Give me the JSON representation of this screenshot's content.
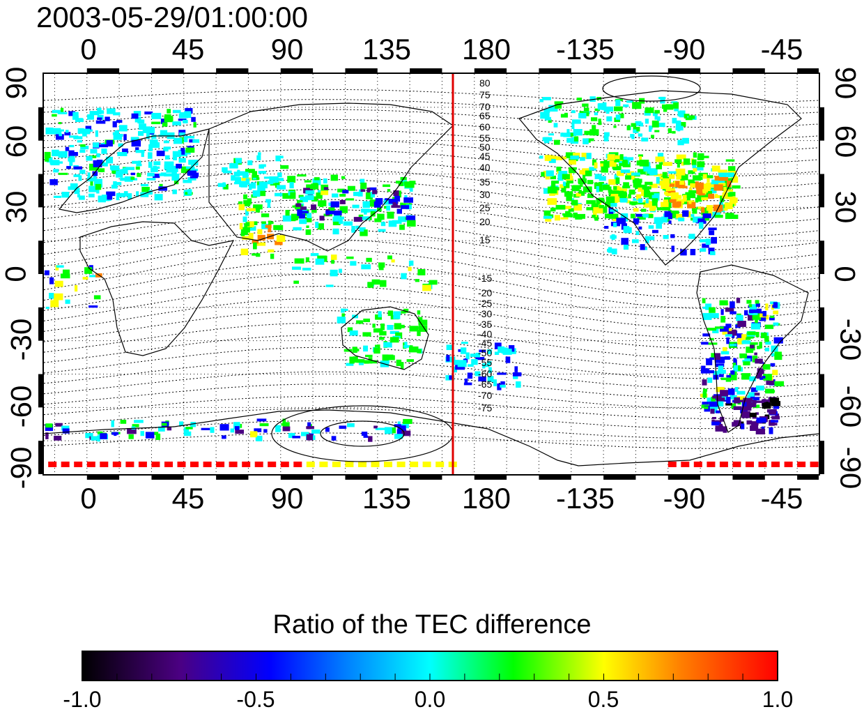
{
  "title": "2003-05-29/01:00:00",
  "longitude_ticks": [
    "0",
    "45",
    "90",
    "135",
    "180",
    "-135",
    "-90",
    "-45"
  ],
  "latitude_ticks": [
    "90",
    "60",
    "30",
    "0",
    "-30",
    "-60",
    "-90"
  ],
  "contour_labels_north": [
    "80",
    "75",
    "70",
    "65",
    "60",
    "55",
    "50",
    "45",
    "40",
    "35",
    "30",
    "25",
    "20",
    "15"
  ],
  "contour_labels_south": [
    "-15",
    "-20",
    "-25",
    "-30",
    "-35",
    "-40",
    "-45",
    "-50",
    "-55",
    "-60",
    "-65",
    "-70",
    "-75"
  ],
  "colorbar": {
    "title": "Ratio of the TEC difference",
    "ticks": [
      "-1.0",
      "-0.5",
      "0.0",
      "0.5",
      "1.0"
    ],
    "range": [
      -1.0,
      1.0
    ],
    "colors": [
      "#000000",
      "#4b0082",
      "#0000ff",
      "#00ffff",
      "#00ff00",
      "#ffff00",
      "#ff8000",
      "#ff0000"
    ]
  },
  "map": {
    "longitude_range": [
      -20,
      340
    ],
    "latitude_range": [
      -90,
      90
    ],
    "meridian_line_longitude": 165,
    "meridian_line_color": "#e00000"
  }
}
